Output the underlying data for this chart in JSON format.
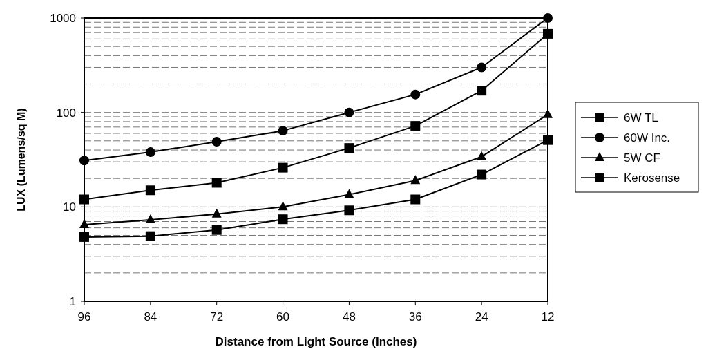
{
  "chart_data": {
    "type": "line",
    "xlabel": "Distance from Light Source (Inches)",
    "ylabel": "LUX (Lumens/sq M)",
    "categories": [
      "96",
      "84",
      "72",
      "60",
      "48",
      "36",
      "24",
      "12"
    ],
    "log": "y",
    "ylim": [
      1,
      1000
    ],
    "yticks": [
      1,
      {
        "value": 2,
        "label": null
      },
      {
        "value": 3,
        "label": null
      },
      {
        "value": 4,
        "label": null
      },
      {
        "value": 5,
        "label": null
      },
      {
        "value": 6,
        "label": null
      },
      {
        "value": 7,
        "label": null
      },
      {
        "value": 8,
        "label": null
      },
      {
        "value": 9,
        "label": null
      },
      10,
      {
        "value": 20,
        "label": null
      },
      {
        "value": 30,
        "label": null
      },
      {
        "value": 40,
        "label": null
      },
      {
        "value": 50,
        "label": null
      },
      {
        "value": 60,
        "label": null
      },
      {
        "value": 70,
        "label": null
      },
      {
        "value": 80,
        "label": null
      },
      {
        "value": 90,
        "label": null
      },
      100,
      {
        "value": 200,
        "label": null
      },
      {
        "value": 300,
        "label": null
      },
      {
        "value": 400,
        "label": null
      },
      {
        "value": 500,
        "label": null
      },
      {
        "value": 600,
        "label": null
      },
      {
        "value": 700,
        "label": null
      },
      {
        "value": 800,
        "label": null
      },
      {
        "value": 900,
        "label": null
      },
      1000
    ],
    "grid": "y",
    "legend": "right",
    "line_style": "solid",
    "series": [
      {
        "name": "6W TL",
        "color": "#000000",
        "marker": "square",
        "values": [
          12,
          15,
          18,
          26,
          42,
          72,
          170,
          680
        ]
      },
      {
        "name": "60W Inc.",
        "color": "#000000",
        "marker": "circle",
        "values": [
          31,
          38,
          49,
          64,
          100,
          155,
          300,
          1000
        ]
      },
      {
        "name": "5W CF",
        "color": "#000000",
        "marker": "triangle",
        "values": [
          6.5,
          7.3,
          8.4,
          10,
          13.5,
          19,
          34,
          95
        ]
      },
      {
        "name": "Kerosense",
        "color": "#000000",
        "marker": "square",
        "values": [
          4.8,
          4.9,
          5.7,
          7.4,
          9.2,
          12,
          22,
          51
        ]
      }
    ]
  }
}
